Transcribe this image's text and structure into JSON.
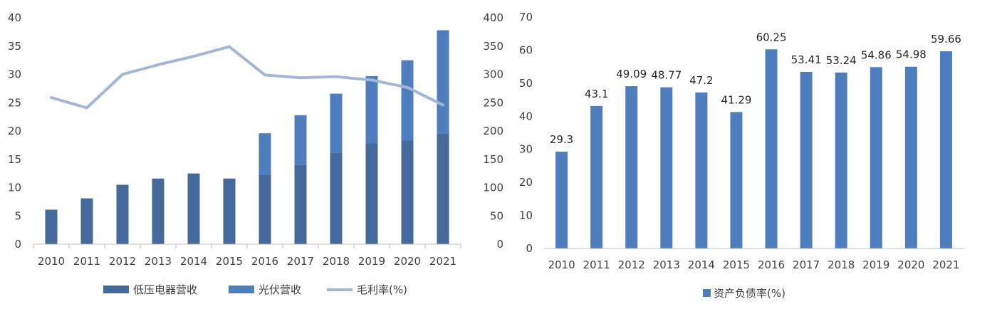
{
  "chart_data": [
    {
      "type": "bar",
      "stacked": true,
      "categories": [
        "2010",
        "2011",
        "2012",
        "2013",
        "2014",
        "2015",
        "2016",
        "2017",
        "2018",
        "2019",
        "2020",
        "2021"
      ],
      "series": [
        {
          "name": "低压电器营收",
          "type": "bar",
          "axis": "left",
          "color": "#44699a",
          "values": [
            6.1,
            8.1,
            10.5,
            11.6,
            12.5,
            11.6,
            12.2,
            14.0,
            16.2,
            17.8,
            18.3,
            19.5
          ]
        },
        {
          "name": "光伏营收",
          "type": "bar",
          "axis": "left",
          "color": "#4f7ebe",
          "values": [
            0,
            0,
            0,
            0,
            0,
            0,
            7.4,
            8.8,
            10.4,
            11.9,
            14.2,
            18.3
          ]
        },
        {
          "name": "毛利率(%)",
          "type": "line",
          "axis": "right",
          "color": "#a4b6d8",
          "values": [
            259,
            241,
            300,
            317,
            332,
            349,
            299,
            294,
            296,
            290,
            277,
            246
          ]
        }
      ],
      "ylim_left": [
        0,
        40
      ],
      "yticks_left": [
        "0",
        "5",
        "10",
        "15",
        "20",
        "25",
        "30",
        "35",
        "40"
      ],
      "ylim_right": [
        0,
        400
      ],
      "yticks_right": [
        "0",
        "50",
        "100",
        "150",
        "200",
        "250",
        "300",
        "350",
        "400"
      ],
      "grid": false,
      "legend": "bottom"
    },
    {
      "type": "bar",
      "categories": [
        "2010",
        "2011",
        "2012",
        "2013",
        "2014",
        "2015",
        "2016",
        "2017",
        "2018",
        "2019",
        "2020",
        "2021"
      ],
      "series": [
        {
          "name": "资产负债率(%)",
          "color": "#4f7ebe",
          "values": [
            29.3,
            43.1,
            49.09,
            48.77,
            47.2,
            41.29,
            60.25,
            53.41,
            53.24,
            54.86,
            54.98,
            59.66
          ]
        }
      ],
      "labels": [
        "29.3",
        "43.1",
        "49.09",
        "48.77",
        "47.2",
        "41.29",
        "60.25",
        "53.41",
        "53.24",
        "54.86",
        "54.98",
        "59.66"
      ],
      "ylim": [
        0,
        70
      ],
      "yticks": [
        "0",
        "10",
        "20",
        "30",
        "40",
        "50",
        "60",
        "70"
      ],
      "grid": false,
      "legend": "bottom"
    }
  ]
}
